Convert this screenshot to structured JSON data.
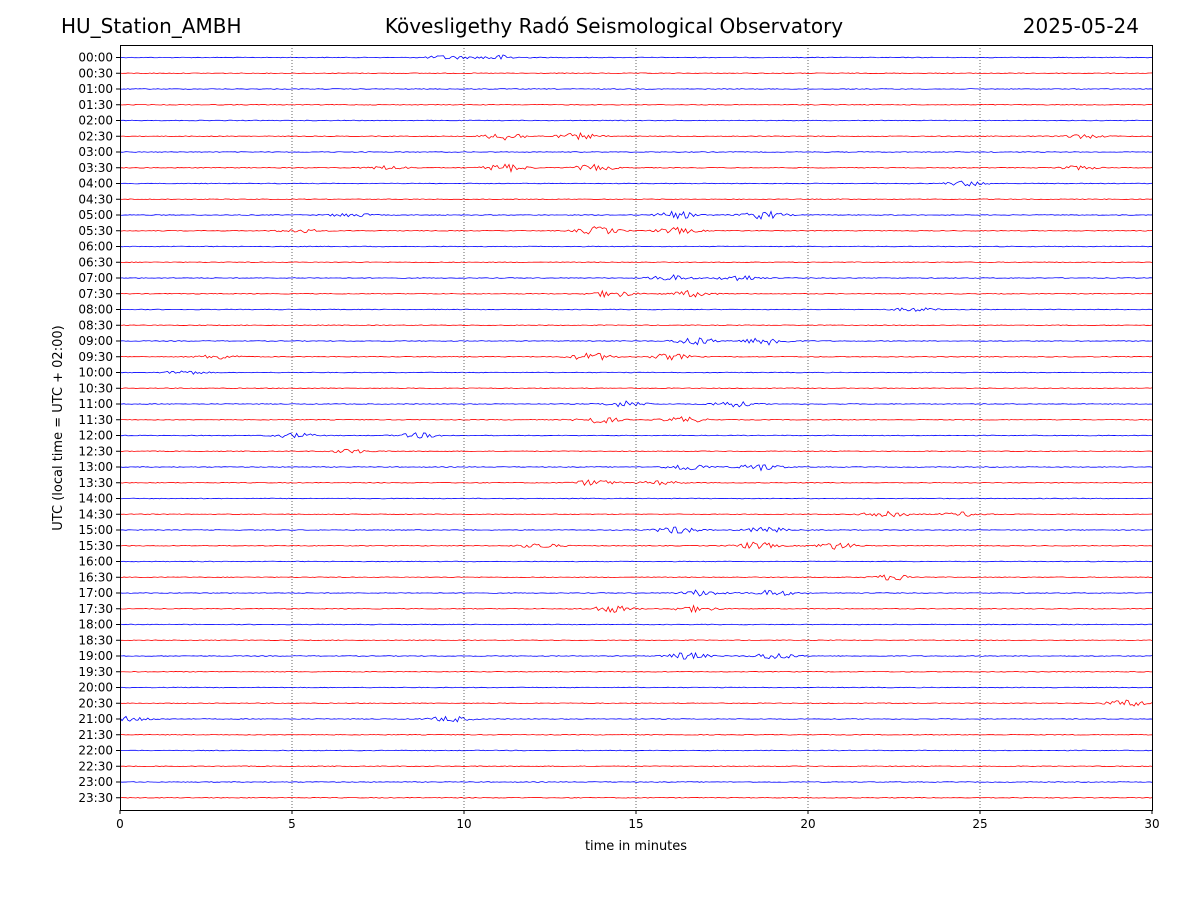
{
  "header": {
    "station": "HU_Station_AMBH",
    "observatory": "Kövesligethy Radó Seismological Observatory",
    "date": "2025-05-24"
  },
  "chart_data": {
    "type": "line",
    "title": "Kövesligethy Radó Seismological Observatory",
    "xlabel": "time in minutes",
    "ylabel": "UTC (local time = UTC + 02:00)",
    "xlim": [
      0,
      30
    ],
    "x_ticks": [
      0,
      5,
      10,
      15,
      20,
      25,
      30
    ],
    "grid": "vertical dotted at every 5 minutes",
    "colors": {
      "even_trace": "#0000ff",
      "odd_trace": "#ff0000"
    },
    "rows": [
      "00:00",
      "00:30",
      "01:00",
      "01:30",
      "02:00",
      "02:30",
      "03:00",
      "03:30",
      "04:00",
      "04:30",
      "05:00",
      "05:30",
      "06:00",
      "06:30",
      "07:00",
      "07:30",
      "08:00",
      "08:30",
      "09:00",
      "09:30",
      "10:00",
      "10:30",
      "11:00",
      "11:30",
      "12:00",
      "12:30",
      "13:00",
      "13:30",
      "14:00",
      "14:30",
      "15:00",
      "15:30",
      "16:00",
      "16:30",
      "17:00",
      "17:30",
      "18:00",
      "18:30",
      "19:00",
      "19:30",
      "20:00",
      "20:30",
      "21:00",
      "21:30",
      "22:00",
      "22:30",
      "23:00",
      "23:30"
    ],
    "events": [
      {
        "row": "00:00",
        "minute": 9.5,
        "amplitude": 2
      },
      {
        "row": "00:00",
        "minute": 11.0,
        "amplitude": 2.5
      },
      {
        "row": "02:30",
        "minute": 11.2,
        "amplitude": 4
      },
      {
        "row": "02:30",
        "minute": 13.3,
        "amplitude": 3
      },
      {
        "row": "02:30",
        "minute": 28.0,
        "amplitude": 2
      },
      {
        "row": "03:30",
        "minute": 7.8,
        "amplitude": 2
      },
      {
        "row": "03:30",
        "minute": 11.2,
        "amplitude": 4
      },
      {
        "row": "03:30",
        "minute": 13.8,
        "amplitude": 3
      },
      {
        "row": "03:30",
        "minute": 27.8,
        "amplitude": 2
      },
      {
        "row": "04:00",
        "minute": 24.6,
        "amplitude": 2.5
      },
      {
        "row": "05:00",
        "minute": 6.7,
        "amplitude": 2
      },
      {
        "row": "05:00",
        "minute": 16.2,
        "amplitude": 3.5
      },
      {
        "row": "05:00",
        "minute": 18.7,
        "amplitude": 4
      },
      {
        "row": "05:30",
        "minute": 5.2,
        "amplitude": 2
      },
      {
        "row": "05:30",
        "minute": 13.9,
        "amplitude": 4
      },
      {
        "row": "05:30",
        "minute": 16.2,
        "amplitude": 3
      },
      {
        "row": "07:00",
        "minute": 16.0,
        "amplitude": 3
      },
      {
        "row": "07:00",
        "minute": 18.0,
        "amplitude": 3
      },
      {
        "row": "07:30",
        "minute": 14.3,
        "amplitude": 3.5
      },
      {
        "row": "07:30",
        "minute": 16.6,
        "amplitude": 3
      },
      {
        "row": "08:00",
        "minute": 23.1,
        "amplitude": 2
      },
      {
        "row": "09:00",
        "minute": 16.7,
        "amplitude": 4
      },
      {
        "row": "09:00",
        "minute": 18.8,
        "amplitude": 4.5
      },
      {
        "row": "09:30",
        "minute": 2.9,
        "amplitude": 2.5
      },
      {
        "row": "09:30",
        "minute": 13.7,
        "amplitude": 4
      },
      {
        "row": "09:30",
        "minute": 16.0,
        "amplitude": 3
      },
      {
        "row": "10:00",
        "minute": 1.9,
        "amplitude": 2
      },
      {
        "row": "11:00",
        "minute": 14.7,
        "amplitude": 3
      },
      {
        "row": "11:00",
        "minute": 17.8,
        "amplitude": 3
      },
      {
        "row": "11:30",
        "minute": 13.9,
        "amplitude": 3.5
      },
      {
        "row": "11:30",
        "minute": 16.4,
        "amplitude": 3
      },
      {
        "row": "12:00",
        "minute": 5.1,
        "amplitude": 2.5
      },
      {
        "row": "12:00",
        "minute": 8.7,
        "amplitude": 2.5
      },
      {
        "row": "12:30",
        "minute": 6.7,
        "amplitude": 2
      },
      {
        "row": "13:00",
        "minute": 16.5,
        "amplitude": 3.5
      },
      {
        "row": "13:00",
        "minute": 18.6,
        "amplitude": 3.5
      },
      {
        "row": "13:30",
        "minute": 13.8,
        "amplitude": 3
      },
      {
        "row": "13:30",
        "minute": 15.7,
        "amplitude": 2
      },
      {
        "row": "14:30",
        "minute": 22.3,
        "amplitude": 4
      },
      {
        "row": "14:30",
        "minute": 24.5,
        "amplitude": 2
      },
      {
        "row": "15:00",
        "minute": 16.2,
        "amplitude": 3.5
      },
      {
        "row": "15:00",
        "minute": 18.8,
        "amplitude": 3
      },
      {
        "row": "15:30",
        "minute": 12.2,
        "amplitude": 2.5
      },
      {
        "row": "15:30",
        "minute": 18.5,
        "amplitude": 3.5
      },
      {
        "row": "15:30",
        "minute": 20.8,
        "amplitude": 3.5
      },
      {
        "row": "16:30",
        "minute": 22.5,
        "amplitude": 3
      },
      {
        "row": "17:00",
        "minute": 16.9,
        "amplitude": 3
      },
      {
        "row": "17:00",
        "minute": 19.0,
        "amplitude": 3
      },
      {
        "row": "17:30",
        "minute": 14.3,
        "amplitude": 3.5
      },
      {
        "row": "17:30",
        "minute": 16.7,
        "amplitude": 3
      },
      {
        "row": "19:00",
        "minute": 16.5,
        "amplitude": 3.5
      },
      {
        "row": "19:00",
        "minute": 19.0,
        "amplitude": 3.5
      },
      {
        "row": "20:30",
        "minute": 29.3,
        "amplitude": 3.5
      },
      {
        "row": "21:00",
        "minute": 0.3,
        "amplitude": 2.5
      },
      {
        "row": "21:00",
        "minute": 9.6,
        "amplitude": 3
      }
    ]
  }
}
